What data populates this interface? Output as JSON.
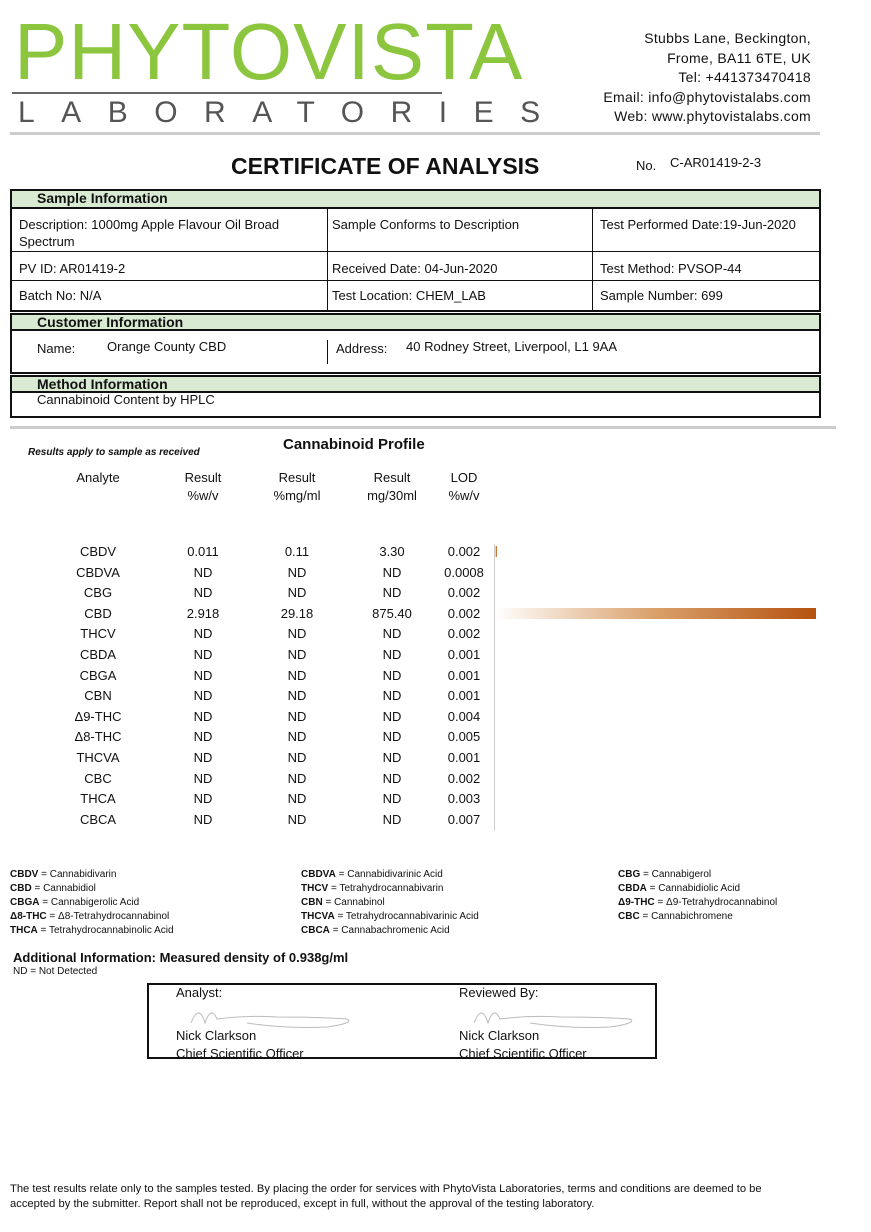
{
  "header": {
    "logo": "PHYTOVISTA",
    "logo_sub": "LABORATORIES",
    "address": [
      "Stubbs Lane, Beckington,",
      "Frome, BA11 6TE, UK",
      "Tel: +441373470418",
      "Email: info@phytovistalabs.com",
      "Web: www.phytovistalabs.com"
    ]
  },
  "title": "CERTIFICATE OF ANALYSIS",
  "number_label": "No.",
  "number": "C-AR01419-2-3",
  "sample_information": {
    "heading": "Sample Information",
    "rows": [
      [
        "Description: 1000mg Apple Flavour Oil Broad Spectrum",
        "Sample Conforms to Description",
        "Test Performed Date:19-Jun-2020"
      ],
      [
        "PV ID: AR01419-2",
        "Received Date: 04-Jun-2020",
        "Test Method: PVSOP-44"
      ],
      [
        "Batch No: N/A",
        "Test Location: CHEM_LAB",
        "Sample Number:  699"
      ]
    ]
  },
  "customer_information": {
    "heading": "Customer Information",
    "name_label": "Name:",
    "name": "Orange County CBD",
    "address_label": "Address:",
    "address": "40 Rodney Street, Liverpool, L1 9AA"
  },
  "method_information": {
    "heading": "Method Information",
    "text": "Cannabinoid Content by HPLC"
  },
  "profile": {
    "note": "Results apply to sample as received",
    "title": "Cannabinoid Profile",
    "columns": [
      [
        "Analyte"
      ],
      [
        "Result",
        "%w/v"
      ],
      [
        "Result",
        "%mg/ml"
      ],
      [
        "Result",
        "mg/30ml"
      ],
      [
        "LOD",
        "%w/v"
      ]
    ],
    "rows": [
      [
        "CBDV",
        "0.011",
        "0.11",
        "3.30",
        "0.002"
      ],
      [
        "CBDVA",
        "ND",
        "ND",
        "ND",
        "0.0008"
      ],
      [
        "CBG",
        "ND",
        "ND",
        "ND",
        "0.002"
      ],
      [
        "CBD",
        "2.918",
        "29.18",
        "875.40",
        "0.002"
      ],
      [
        "THCV",
        "ND",
        "ND",
        "ND",
        "0.002"
      ],
      [
        "CBDA",
        "ND",
        "ND",
        "ND",
        "0.001"
      ],
      [
        "CBGA",
        "ND",
        "ND",
        "ND",
        "0.001"
      ],
      [
        "CBN",
        "ND",
        "ND",
        "ND",
        "0.001"
      ],
      [
        "Δ9-THC",
        "ND",
        "ND",
        "ND",
        "0.004"
      ],
      [
        "Δ8-THC",
        "ND",
        "ND",
        "ND",
        "0.005"
      ],
      [
        "THCVA",
        "ND",
        "ND",
        "ND",
        "0.001"
      ],
      [
        "CBC",
        "ND",
        "ND",
        "ND",
        "0.002"
      ],
      [
        "THCA",
        "ND",
        "ND",
        "ND",
        "0.003"
      ],
      [
        "CBCA",
        "ND",
        "ND",
        "ND",
        "0.007"
      ]
    ]
  },
  "glossary": [
    [
      {
        "abbr": "CBDV",
        "text": " = Cannabidivarin"
      },
      {
        "abbr": "CBD",
        "text": " = Cannabidiol"
      },
      {
        "abbr": "CBGA",
        "text": " = Cannabigerolic Acid"
      },
      {
        "abbr": "Δ8-THC",
        "text": " = Δ8-Tetrahydrocannabinol"
      },
      {
        "abbr": "THCA",
        "text": " = Tetrahydrocannabinolic Acid"
      }
    ],
    [
      {
        "abbr": "CBDVA",
        "text": " = Cannabidivarinic Acid"
      },
      {
        "abbr": "THCV",
        "text": " = Tetrahydrocannabivarin"
      },
      {
        "abbr": "CBN",
        "text": " = Cannabinol"
      },
      {
        "abbr": "THCVA",
        "text": " = Tetrahydrocannabivarinic Acid"
      },
      {
        "abbr": "CBCA",
        "text": " = Cannabachromenic Acid"
      }
    ],
    [
      {
        "abbr": "CBG",
        "text": " = Cannabigerol"
      },
      {
        "abbr": "CBDA",
        "text": " = Cannabidiolic Acid"
      },
      {
        "abbr": "Δ9-THC",
        "text": " = Δ9-Tetrahydrocannabinol"
      },
      {
        "abbr": "CBC",
        "text": " = Cannabichromene"
      }
    ]
  ],
  "additional_information": "Additional Information: Measured density of 0.938g/ml",
  "nd_note": "ND = Not Detected",
  "signatures": [
    {
      "label": "Analyst:",
      "name": "Nick Clarkson",
      "role": "Chief Scientific Officer"
    },
    {
      "label": "Reviewed By:",
      "name": "Nick Clarkson",
      "role": "Chief Scientific Officer"
    }
  ],
  "footer": "The test results relate only to the samples tested.  By placing the order for services with PhytoVista Laboratories, terms and conditions are deemed to be accepted by the submitter. Report shall not be reproduced, except in full, without the approval of the testing laboratory."
}
